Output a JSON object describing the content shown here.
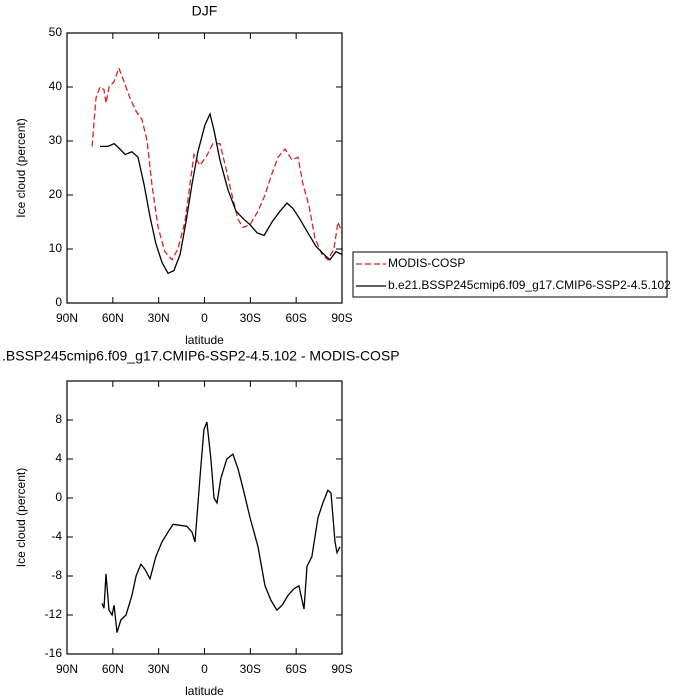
{
  "chart_data": [
    {
      "type": "line",
      "title": "DJF",
      "xlabel": "latitude",
      "ylabel": "Ice cloud (percent)",
      "xlim": [
        90,
        -90
      ],
      "ylim": [
        0,
        50
      ],
      "xticks": [
        {
          "value": 90,
          "label": "90N"
        },
        {
          "value": 60,
          "label": "60N"
        },
        {
          "value": 30,
          "label": "30N"
        },
        0,
        {
          "value": -30,
          "label": "30S"
        },
        {
          "value": -60,
          "label": "60S"
        },
        {
          "value": -90,
          "label": "90S"
        }
      ],
      "yticks": [
        0,
        10,
        20,
        30,
        40,
        50
      ],
      "legend_position": "right",
      "series": [
        {
          "name": "MODIS-COSP",
          "color": "#dd2222",
          "linestyle": "dashed",
          "x": [
            73.6,
            71,
            68.4,
            65.8,
            64.5,
            62.5,
            59.2,
            56,
            52.7,
            48.8,
            44.8,
            40.9,
            37.6,
            34.4,
            30.4,
            25.9,
            21.3,
            17.4,
            12.8,
            9.5,
            6.9,
            3,
            -1,
            -5.5,
            -10.1,
            -14,
            -18,
            -21.9,
            -25.2,
            -29.8,
            -35,
            -39.6,
            -44.2,
            -48.1,
            -52.7,
            -57.3,
            -61.2,
            -64.5,
            -68.4,
            -72.3,
            -76.9,
            -80.8,
            -84.7,
            -87.4,
            -90
          ],
          "values": [
            29,
            38,
            40,
            39.5,
            37,
            40,
            41,
            43.5,
            41,
            38,
            35.5,
            34,
            30,
            22,
            14,
            9.5,
            8,
            10,
            15,
            22,
            27.5,
            25.5,
            27,
            29.5,
            29.5,
            25,
            20,
            15.5,
            14,
            14.5,
            17,
            20,
            24,
            27,
            28.5,
            26.5,
            27,
            22,
            18,
            12,
            9,
            8,
            10,
            15,
            13
          ]
        },
        {
          "name": "b.e21.BSSP245cmip6.f09_g17.CMIP6-SSP2-4.5.102",
          "color": "#000000",
          "linestyle": "solid",
          "x": [
            68.4,
            63.2,
            59.2,
            55.3,
            52,
            47.5,
            43.5,
            39.6,
            35.7,
            31.8,
            27.8,
            23.9,
            20,
            16,
            12.1,
            8.2,
            4.3,
            -0.3,
            -3.6,
            -6.2,
            -10.1,
            -15.3,
            -20.6,
            -25.8,
            -29.8,
            -34.4,
            -39,
            -44.2,
            -49.4,
            -54,
            -57.9,
            -62.5,
            -67.7,
            -73,
            -78.2,
            -82.1,
            -86,
            -90
          ],
          "values": [
            29,
            29,
            29.5,
            28.5,
            27.5,
            28,
            27,
            22,
            16,
            11,
            7.5,
            5.5,
            6,
            9,
            15,
            22,
            28,
            33,
            35,
            32,
            26.5,
            21,
            17,
            15.5,
            14.5,
            13,
            12.5,
            15,
            17,
            18.5,
            17.5,
            15.5,
            13,
            10.5,
            9,
            8,
            9.5,
            9
          ]
        }
      ]
    },
    {
      "type": "line",
      "title": ".BSSP245cmip6.f09_g17.CMIP6-SSP2-4.5.102 - MODIS-COSP",
      "xlabel": "latitude",
      "ylabel": "Ice cloud (percent)",
      "xlim": [
        90,
        -90
      ],
      "ylim": [
        -16,
        12
      ],
      "xticks": [
        {
          "value": 90,
          "label": "90N"
        },
        {
          "value": 60,
          "label": "60N"
        },
        {
          "value": 30,
          "label": "30N"
        },
        0,
        {
          "value": -30,
          "label": "30S"
        },
        {
          "value": -60,
          "label": "60S"
        },
        {
          "value": -90,
          "label": "90S"
        }
      ],
      "yticks": [
        -16,
        -12,
        -8,
        -4,
        0,
        4,
        8
      ],
      "series": [
        {
          "color": "#000000",
          "linestyle": "solid",
          "x": [
            67.1,
            65.8,
            64.5,
            62.5,
            60.5,
            59.2,
            57.3,
            54.7,
            51.4,
            47.5,
            44.8,
            41.6,
            39,
            35.7,
            31.8,
            27.8,
            23.9,
            20.6,
            16,
            11.5,
            8.2,
            6.2,
            3,
            0.4,
            -1.6,
            -4.2,
            -6.2,
            -8.2,
            -10.7,
            -14.6,
            -18.6,
            -21.9,
            -25.2,
            -29.8,
            -35,
            -39.6,
            -43.5,
            -47.4,
            -50.7,
            -54.6,
            -58.6,
            -61.8,
            -65.1,
            -67.1,
            -70.3,
            -74.3,
            -77.5,
            -80.8,
            -82.8,
            -85.4,
            -86.7,
            -88.7
          ],
          "values": [
            -10.8,
            -11.3,
            -7.8,
            -11.5,
            -12,
            -11,
            -13.8,
            -12.5,
            -12,
            -10,
            -8,
            -6.8,
            -7.3,
            -8.3,
            -6,
            -4.5,
            -3.5,
            -2.7,
            -2.8,
            -2.9,
            -3.5,
            -4.5,
            2,
            7,
            7.8,
            4,
            0,
            -0.5,
            2,
            4,
            4.5,
            3,
            1,
            -2,
            -5,
            -9,
            -10.5,
            -11.5,
            -11,
            -10,
            -9.3,
            -9,
            -11.4,
            -7,
            -6,
            -2,
            -0.5,
            0.8,
            0.5,
            -4.5,
            -5.6,
            -5
          ]
        }
      ]
    }
  ]
}
